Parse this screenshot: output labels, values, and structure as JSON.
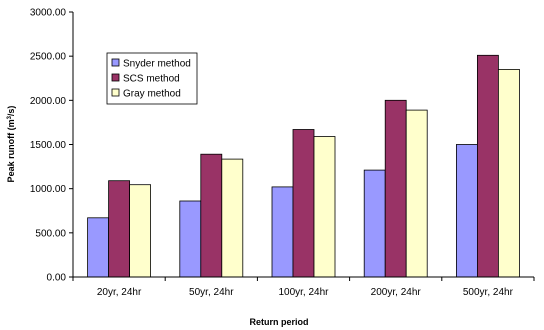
{
  "chart_data": {
    "type": "bar",
    "title": "",
    "xlabel": "Return period",
    "ylabel": {
      "prefix": "Peak runoff (m",
      "sup": "3",
      "suffix": "/s)"
    },
    "ylim": [
      0,
      3000
    ],
    "yticks": [
      "0.00",
      "500.00",
      "1000.00",
      "1500.00",
      "2000.00",
      "2500.00",
      "3000.00"
    ],
    "grid": false,
    "legend_position": "top-left",
    "categories": [
      "20yr, 24hr",
      "50yr, 24hr",
      "100yr, 24hr",
      "200yr, 24hr",
      "500yr, 24hr"
    ],
    "series": [
      {
        "name": "Snyder method",
        "color": "#9999ff",
        "values": [
          670,
          860,
          1020,
          1210,
          1500
        ]
      },
      {
        "name": "SCS method",
        "color": "#993366",
        "values": [
          1090,
          1390,
          1670,
          2000,
          2510
        ]
      },
      {
        "name": "Gray method",
        "color": "#ffffcc",
        "values": [
          1045,
          1335,
          1590,
          1890,
          2350
        ]
      }
    ]
  }
}
